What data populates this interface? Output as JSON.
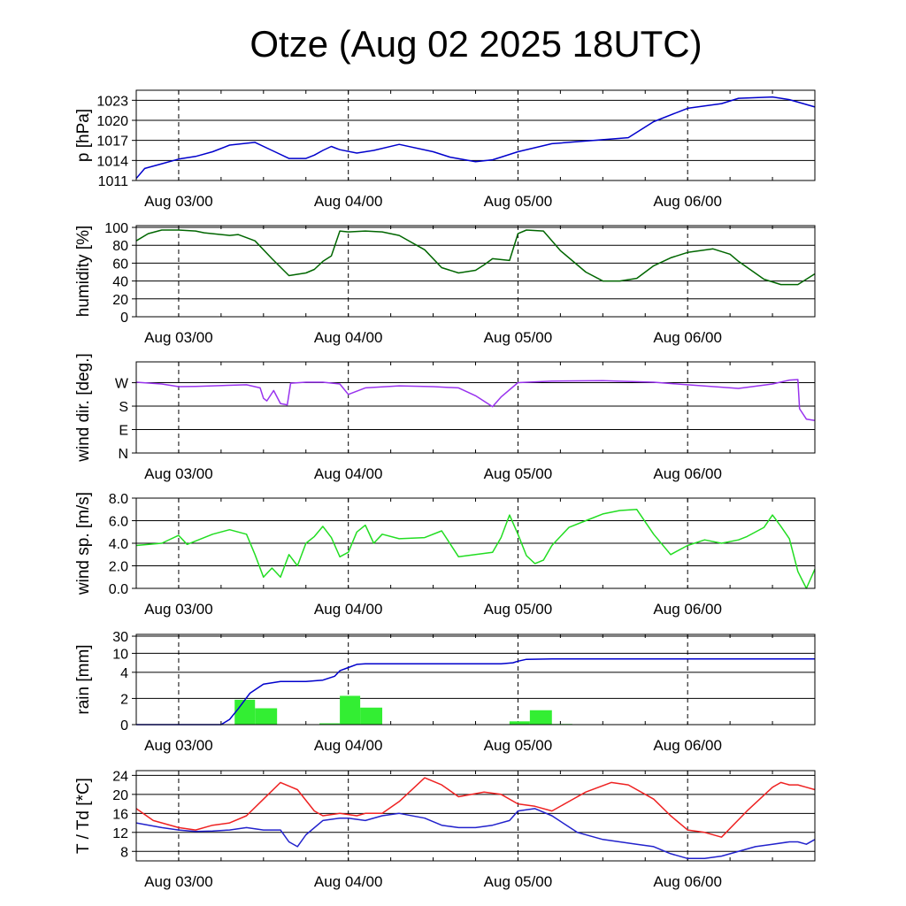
{
  "title": "Otze (Aug 02 2025 18UTC)",
  "time_ticks": [
    "Aug 03/00",
    "Aug 04/00",
    "Aug 05/00",
    "Aug 06/00"
  ],
  "chart_data": [
    {
      "type": "line",
      "ylabel": "p [hPa]",
      "ylim": [
        1011,
        1024.5
      ],
      "yticks": [
        1011,
        1014,
        1017,
        1020,
        1023
      ],
      "x_range_days": [
        -0.25,
        3.75
      ],
      "series": [
        {
          "color": "#0000cc",
          "x": [
            -0.25,
            -0.2,
            -0.1,
            0.0,
            0.1,
            0.2,
            0.3,
            0.45,
            0.55,
            0.65,
            0.75,
            0.8,
            0.85,
            0.9,
            0.95,
            1.05,
            1.15,
            1.3,
            1.5,
            1.6,
            1.75,
            1.85,
            1.9,
            2.0,
            2.2,
            2.5,
            2.65,
            2.8,
            3.0,
            3.2,
            3.3,
            3.5,
            3.6,
            3.75
          ],
          "y": [
            1011.3,
            1012.8,
            1013.5,
            1014.2,
            1014.6,
            1015.3,
            1016.3,
            1016.7,
            1015.5,
            1014.3,
            1014.3,
            1014.8,
            1015.5,
            1016.1,
            1015.6,
            1015.1,
            1015.5,
            1016.4,
            1015.3,
            1014.5,
            1013.8,
            1014.1,
            1014.5,
            1015.3,
            1016.5,
            1017.1,
            1017.4,
            1019.8,
            1021.8,
            1022.5,
            1023.3,
            1023.5,
            1023.1,
            1022.0
          ]
        }
      ]
    },
    {
      "type": "line",
      "ylabel": "humidity [%]",
      "ylim": [
        0,
        102
      ],
      "yticks": [
        0,
        20,
        40,
        60,
        80,
        100
      ],
      "x_range_days": [
        -0.25,
        3.75
      ],
      "series": [
        {
          "color": "#006600",
          "x": [
            -0.25,
            -0.18,
            -0.1,
            0.0,
            0.1,
            0.15,
            0.2,
            0.3,
            0.35,
            0.45,
            0.55,
            0.65,
            0.75,
            0.8,
            0.85,
            0.9,
            0.95,
            1.0,
            1.1,
            1.2,
            1.3,
            1.45,
            1.55,
            1.65,
            1.75,
            1.8,
            1.85,
            1.95,
            2.0,
            2.05,
            2.15,
            2.25,
            2.4,
            2.5,
            2.6,
            2.7,
            2.8,
            2.9,
            3.0,
            3.15,
            3.25,
            3.3,
            3.45,
            3.55,
            3.65,
            3.75
          ],
          "y": [
            85,
            93,
            97,
            97,
            96,
            94,
            93,
            91,
            92,
            85,
            65,
            46,
            49,
            53,
            62,
            68,
            96,
            95,
            96,
            95,
            91,
            75,
            55,
            49,
            52,
            58,
            65,
            63,
            93,
            97,
            96,
            74,
            50,
            40,
            40,
            43,
            57,
            66,
            72,
            76,
            70,
            62,
            42,
            36,
            36,
            48
          ]
        }
      ]
    },
    {
      "type": "line",
      "ylabel": "wind dir. [deg.]",
      "ylim": [
        0,
        350
      ],
      "yticks": [
        0,
        90,
        180,
        270
      ],
      "ytick_labels": [
        "N",
        "E",
        "S",
        "W"
      ],
      "x_range_days": [
        -0.25,
        3.75
      ],
      "series": [
        {
          "color": "#9933ee",
          "x": [
            -0.25,
            -0.1,
            0.0,
            0.1,
            0.2,
            0.4,
            0.48,
            0.5,
            0.52,
            0.56,
            0.6,
            0.64,
            0.66,
            0.75,
            0.85,
            0.95,
            1.0,
            1.1,
            1.3,
            1.5,
            1.65,
            1.75,
            1.85,
            1.9,
            2.0,
            2.2,
            2.5,
            2.8,
            3.0,
            3.3,
            3.5,
            3.6,
            3.65,
            3.66,
            3.7,
            3.75
          ],
          "y": [
            272,
            265,
            255,
            256,
            258,
            262,
            250,
            210,
            200,
            240,
            190,
            185,
            268,
            272,
            272,
            265,
            225,
            250,
            258,
            255,
            250,
            220,
            178,
            215,
            270,
            276,
            278,
            272,
            262,
            248,
            265,
            280,
            282,
            170,
            130,
            125
          ]
        }
      ]
    },
    {
      "type": "line",
      "ylabel": "wind sp. [m/s]",
      "ylim": [
        0,
        8
      ],
      "yticks": [
        0,
        2,
        4,
        6,
        8
      ],
      "ytick_labels": [
        "0.0",
        "2.0",
        "4.0",
        "6.0",
        "8.0"
      ],
      "x_range_days": [
        -0.25,
        3.75
      ],
      "series": [
        {
          "color": "#22dd22",
          "x": [
            -0.25,
            -0.1,
            0.0,
            0.05,
            0.2,
            0.3,
            0.4,
            0.45,
            0.5,
            0.55,
            0.6,
            0.65,
            0.7,
            0.75,
            0.8,
            0.85,
            0.9,
            0.95,
            1.0,
            1.05,
            1.1,
            1.15,
            1.2,
            1.3,
            1.45,
            1.55,
            1.65,
            1.75,
            1.85,
            1.9,
            1.95,
            2.0,
            2.05,
            2.1,
            2.15,
            2.2,
            2.3,
            2.4,
            2.5,
            2.6,
            2.7,
            2.8,
            2.9,
            3.0,
            3.1,
            3.2,
            3.3,
            3.35,
            3.45,
            3.5,
            3.55,
            3.6,
            3.65,
            3.7,
            3.75
          ],
          "y": [
            3.8,
            4.0,
            4.7,
            3.9,
            4.8,
            5.2,
            4.8,
            3.0,
            1.0,
            1.8,
            1.0,
            3.0,
            2.0,
            4.0,
            4.6,
            5.5,
            4.5,
            2.8,
            3.2,
            5.0,
            5.6,
            4.0,
            4.8,
            4.4,
            4.5,
            5.1,
            2.8,
            3.0,
            3.2,
            4.5,
            6.5,
            4.8,
            2.9,
            2.2,
            2.5,
            3.8,
            5.4,
            6.0,
            6.6,
            6.9,
            7.0,
            4.8,
            3.0,
            3.8,
            4.3,
            4.0,
            4.3,
            4.6,
            5.4,
            6.5,
            5.5,
            4.4,
            1.5,
            0.0,
            1.7
          ]
        }
      ]
    },
    {
      "type": "bar",
      "ylabel": "rain [mm]",
      "ylim": [
        0,
        30
      ],
      "yticks": [
        0,
        2,
        4,
        10,
        30
      ],
      "x_range_days": [
        -0.25,
        3.75
      ],
      "series": [
        {
          "name_hidden": "hourly",
          "color": "#33ee33",
          "bars": [
            {
              "x0": 0.33,
              "x1": 0.45,
              "value": 1.9
            },
            {
              "x0": 0.45,
              "x1": 0.58,
              "value": 1.25
            },
            {
              "x0": 0.83,
              "x1": 0.95,
              "value": 0.1
            },
            {
              "x0": 0.95,
              "x1": 1.07,
              "value": 2.2
            },
            {
              "x0": 1.07,
              "x1": 1.2,
              "value": 1.3
            },
            {
              "x0": 1.95,
              "x1": 2.07,
              "value": 0.25
            },
            {
              "x0": 2.07,
              "x1": 2.2,
              "value": 1.1
            },
            {
              "x0": 2.2,
              "x1": 2.32,
              "value": 0.05
            }
          ]
        },
        {
          "name_hidden": "accumulated",
          "color": "#0000cc",
          "type": "line",
          "x": [
            -0.25,
            0.25,
            0.3,
            0.35,
            0.42,
            0.5,
            0.6,
            0.75,
            0.85,
            0.92,
            0.95,
            1.0,
            1.05,
            1.1,
            1.5,
            1.9,
            1.97,
            2.0,
            2.05,
            2.2,
            3.75
          ],
          "y": [
            0,
            0,
            0.4,
            1.2,
            2.4,
            3.1,
            3.3,
            3.3,
            3.4,
            3.7,
            4.5,
            5.5,
            6.5,
            6.7,
            6.7,
            6.7,
            7.0,
            7.5,
            8.1,
            8.2,
            8.2
          ]
        }
      ]
    },
    {
      "type": "line",
      "ylabel": "T / Td [*C]",
      "ylim": [
        6,
        25
      ],
      "yticks": [
        8,
        12,
        16,
        20,
        24
      ],
      "x_range_days": [
        -0.25,
        3.75
      ],
      "series": [
        {
          "color": "#ee2222",
          "x": [
            -0.25,
            -0.15,
            0.0,
            0.1,
            0.2,
            0.3,
            0.4,
            0.5,
            0.6,
            0.7,
            0.8,
            0.85,
            0.95,
            1.05,
            1.1,
            1.2,
            1.3,
            1.45,
            1.55,
            1.65,
            1.8,
            1.9,
            2.0,
            2.1,
            2.2,
            2.3,
            2.4,
            2.55,
            2.65,
            2.8,
            2.9,
            3.0,
            3.1,
            3.2,
            3.35,
            3.5,
            3.55,
            3.6,
            3.65,
            3.7,
            3.75
          ],
          "y": [
            17.0,
            14.5,
            13.0,
            12.5,
            13.5,
            14.0,
            15.5,
            19.0,
            22.5,
            21.0,
            16.5,
            15.5,
            16.0,
            15.5,
            16.0,
            16.0,
            18.5,
            23.5,
            22.0,
            19.5,
            20.5,
            20.0,
            18.0,
            17.5,
            16.5,
            18.5,
            20.5,
            22.5,
            22.0,
            19.0,
            15.5,
            12.5,
            12.0,
            11.0,
            16.5,
            21.5,
            22.5,
            22.0,
            22.0,
            21.5,
            21.0
          ]
        },
        {
          "color": "#2222cc",
          "x": [
            -0.25,
            -0.1,
            0.0,
            0.1,
            0.2,
            0.3,
            0.4,
            0.5,
            0.6,
            0.65,
            0.7,
            0.75,
            0.85,
            0.95,
            1.0,
            1.1,
            1.2,
            1.3,
            1.45,
            1.55,
            1.65,
            1.75,
            1.85,
            1.95,
            2.0,
            2.1,
            2.2,
            2.35,
            2.5,
            2.6,
            2.7,
            2.8,
            2.9,
            3.0,
            3.1,
            3.2,
            3.4,
            3.5,
            3.6,
            3.65,
            3.7,
            3.75
          ],
          "y": [
            14.0,
            13.0,
            12.5,
            12.2,
            12.3,
            12.5,
            13.0,
            12.5,
            12.5,
            10.0,
            9.0,
            11.5,
            14.5,
            15.0,
            15.0,
            14.5,
            15.5,
            16.0,
            15.0,
            13.5,
            13.0,
            13.0,
            13.5,
            14.5,
            16.5,
            17.0,
            15.5,
            12.0,
            10.5,
            10.0,
            9.5,
            9.0,
            7.5,
            6.5,
            6.5,
            7.0,
            9.0,
            9.5,
            10.0,
            10.0,
            9.5,
            10.5
          ]
        }
      ]
    }
  ]
}
